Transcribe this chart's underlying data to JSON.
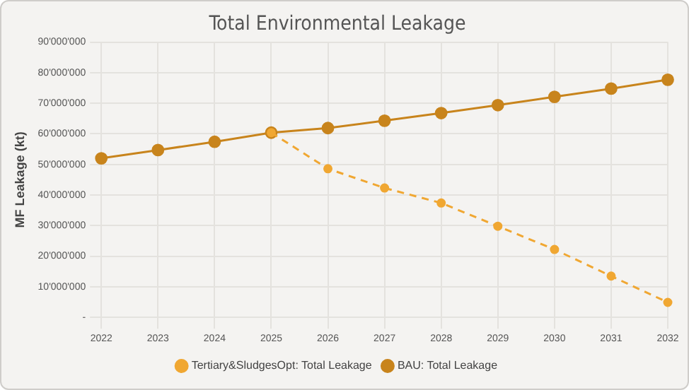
{
  "chart_data": {
    "type": "line",
    "title": "Total Environmental Leakage",
    "ylabel": "MF Leakage (kt)",
    "categories": [
      "2022",
      "2023",
      "2024",
      "2025",
      "2026",
      "2027",
      "2028",
      "2029",
      "2030",
      "2031",
      "2032"
    ],
    "series": [
      {
        "name": "Tertiary&SludgesOpt: Total Leakage",
        "color": "#f0a732",
        "line_style": "dashed",
        "values": [
          null,
          null,
          null,
          60400000.0,
          48600000.0,
          42300000.0,
          37400000.0,
          29800000.0,
          22200000.0,
          13500000.0,
          4900000.0
        ]
      },
      {
        "name": "BAU: Total Leakage",
        "color": "#c8841c",
        "line_style": "solid",
        "values": [
          52000000.0,
          54700000.0,
          57400000.0,
          60400000.0,
          61900000.0,
          64300000.0,
          66800000.0,
          69400000.0,
          72100000.0,
          74800000.0,
          77700000.0
        ]
      }
    ],
    "ylim": [
      0,
      90000000
    ],
    "yticks": [
      {
        "value": 0,
        "label": "-"
      },
      {
        "value": 10000000,
        "label": "10'000'000"
      },
      {
        "value": 20000000,
        "label": "20'000'000"
      },
      {
        "value": 30000000,
        "label": "30'000'000"
      },
      {
        "value": 40000000,
        "label": "40'000'000"
      },
      {
        "value": 50000000,
        "label": "50'000'000"
      },
      {
        "value": 60000000,
        "label": "60'000'000"
      },
      {
        "value": 70000000,
        "label": "70'000'000"
      },
      {
        "value": 80000000,
        "label": "80'000'000"
      },
      {
        "value": 90000000,
        "label": "90'000'000"
      }
    ],
    "grid": true,
    "legend": "bottom",
    "marker": "circle"
  }
}
